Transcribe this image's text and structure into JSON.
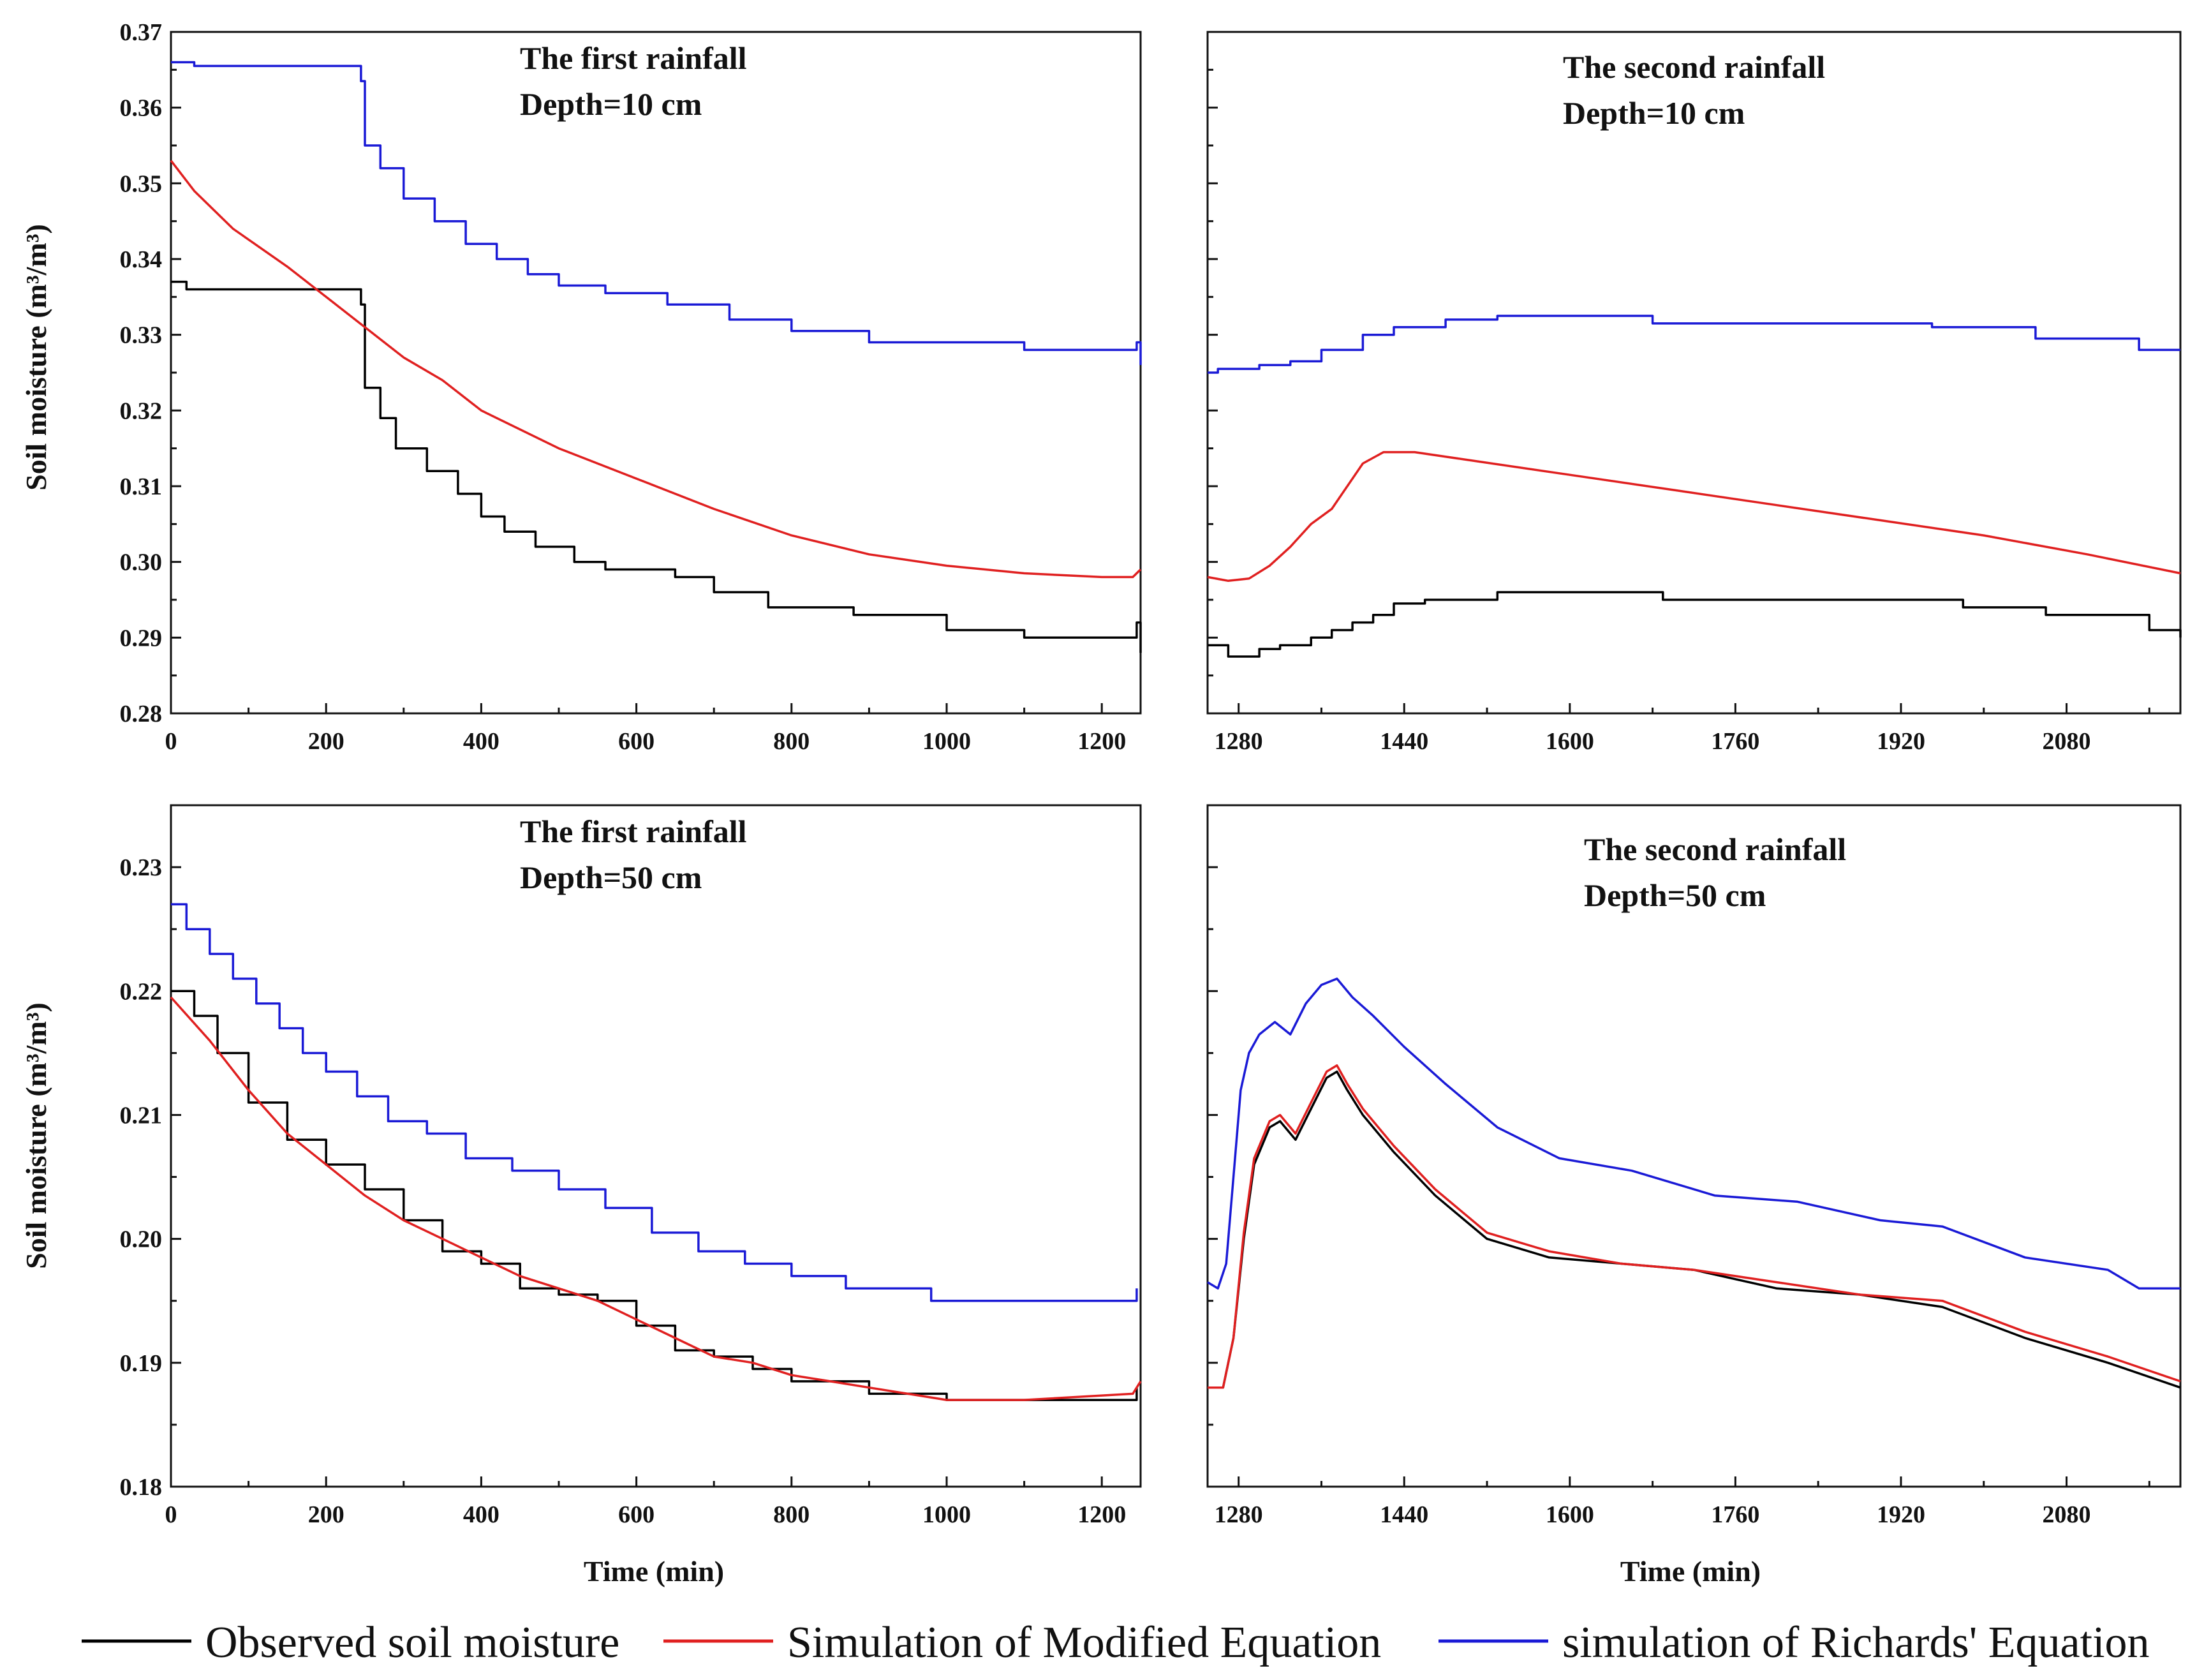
{
  "colors": {
    "observed": "#000000",
    "modified": "#e02020",
    "richards": "#1a1ad6",
    "axis": "#111111"
  },
  "legend": {
    "observed": "Observed soil moisture",
    "modified": "Simulation of Modified Equation",
    "richards": "simulation of Richards' Equation"
  },
  "chart_data": [
    {
      "type": "line",
      "panel": "top-left",
      "title": "",
      "annotation": [
        "The first rainfall",
        "Depth=10 cm"
      ],
      "xlabel": "",
      "ylabel": "Soil moisture (m³/m³)",
      "xlim": [
        0,
        1250
      ],
      "ylim": [
        0.28,
        0.37
      ],
      "xticks": [
        0,
        200,
        400,
        600,
        800,
        1000,
        1200
      ],
      "xtick_labels": [
        "0",
        "200",
        "400",
        "600",
        "800",
        "1000",
        "1200"
      ],
      "yticks": [
        0.28,
        0.29,
        0.3,
        0.31,
        0.32,
        0.33,
        0.34,
        0.35,
        0.36,
        0.37
      ],
      "ytick_labels": [
        "0.28",
        "0.29",
        "0.30",
        "0.31",
        "0.32",
        "0.33",
        "0.34",
        "0.35",
        "0.36",
        "0.37"
      ],
      "series": [
        {
          "name": "Observed soil moisture",
          "color": "observed",
          "step": true,
          "x": [
            0,
            20,
            30,
            220,
            245,
            250,
            270,
            290,
            330,
            370,
            400,
            430,
            470,
            520,
            560,
            650,
            700,
            770,
            880,
            1000,
            1100,
            1240,
            1245,
            1250
          ],
          "y": [
            0.337,
            0.336,
            0.336,
            0.336,
            0.334,
            0.323,
            0.319,
            0.315,
            0.312,
            0.309,
            0.306,
            0.304,
            0.302,
            0.3,
            0.299,
            0.298,
            0.296,
            0.294,
            0.293,
            0.291,
            0.29,
            0.29,
            0.292,
            0.288
          ]
        },
        {
          "name": "Simulation of Modified Equation",
          "color": "modified",
          "step": false,
          "x": [
            0,
            30,
            80,
            150,
            200,
            250,
            300,
            350,
            400,
            500,
            600,
            700,
            800,
            900,
            1000,
            1100,
            1200,
            1240,
            1250
          ],
          "y": [
            0.353,
            0.349,
            0.344,
            0.339,
            0.335,
            0.331,
            0.327,
            0.324,
            0.32,
            0.315,
            0.311,
            0.307,
            0.3035,
            0.301,
            0.2995,
            0.2985,
            0.298,
            0.298,
            0.299
          ]
        },
        {
          "name": "simulation of Richards' Equation",
          "color": "richards",
          "step": true,
          "x": [
            0,
            30,
            220,
            245,
            250,
            270,
            300,
            340,
            380,
            420,
            460,
            500,
            560,
            640,
            720,
            800,
            900,
            1100,
            1240,
            1245,
            1250
          ],
          "y": [
            0.366,
            0.3655,
            0.3655,
            0.3635,
            0.355,
            0.352,
            0.348,
            0.345,
            0.342,
            0.34,
            0.338,
            0.3365,
            0.3355,
            0.334,
            0.332,
            0.3305,
            0.329,
            0.328,
            0.328,
            0.329,
            0.326
          ]
        }
      ]
    },
    {
      "type": "line",
      "panel": "top-right",
      "title": "",
      "annotation": [
        "The second rainfall",
        "Depth=10 cm"
      ],
      "xlabel": "",
      "ylabel": "",
      "xlim": [
        1250,
        2190
      ],
      "ylim": [
        0.28,
        0.37
      ],
      "xticks": [
        1280,
        1440,
        1600,
        1760,
        1920,
        2080
      ],
      "xtick_labels": [
        "1280",
        "1440",
        "1600",
        "1760",
        "1920",
        "2080"
      ],
      "yticks": [
        0.28,
        0.29,
        0.3,
        0.31,
        0.32,
        0.33,
        0.34,
        0.35,
        0.36,
        0.37
      ],
      "ytick_labels": [],
      "series": [
        {
          "name": "Observed soil moisture",
          "color": "observed",
          "step": true,
          "x": [
            1250,
            1270,
            1280,
            1300,
            1320,
            1350,
            1370,
            1390,
            1410,
            1430,
            1460,
            1500,
            1530,
            1690,
            1980,
            2060,
            2160,
            2190
          ],
          "y": [
            0.289,
            0.2875,
            0.2875,
            0.2885,
            0.289,
            0.29,
            0.291,
            0.292,
            0.293,
            0.2945,
            0.295,
            0.295,
            0.296,
            0.295,
            0.294,
            0.293,
            0.291,
            0.29
          ]
        },
        {
          "name": "Simulation of Modified Equation",
          "color": "modified",
          "step": false,
          "x": [
            1250,
            1270,
            1290,
            1310,
            1330,
            1350,
            1370,
            1380,
            1400,
            1420,
            1450,
            1500,
            1600,
            1700,
            1800,
            1900,
            2000,
            2100,
            2190
          ],
          "y": [
            0.298,
            0.2975,
            0.2978,
            0.2995,
            0.302,
            0.305,
            0.307,
            0.309,
            0.313,
            0.3145,
            0.3145,
            0.3135,
            0.3115,
            0.3095,
            0.3075,
            0.3055,
            0.3035,
            0.301,
            0.2985
          ]
        },
        {
          "name": "simulation of Richards' Equation",
          "color": "richards",
          "step": true,
          "x": [
            1250,
            1260,
            1280,
            1300,
            1330,
            1360,
            1400,
            1430,
            1480,
            1530,
            1680,
            1950,
            2050,
            2150,
            2190
          ],
          "y": [
            0.325,
            0.3255,
            0.3255,
            0.326,
            0.3265,
            0.328,
            0.33,
            0.331,
            0.332,
            0.3325,
            0.3315,
            0.331,
            0.3295,
            0.328,
            0.328
          ]
        }
      ]
    },
    {
      "type": "line",
      "panel": "bottom-left",
      "title": "",
      "annotation": [
        "The first rainfall",
        "Depth=50 cm"
      ],
      "xlabel": "Time (min)",
      "ylabel": "Soil moisture (m³/m³)",
      "xlim": [
        0,
        1250
      ],
      "ylim": [
        0.18,
        0.235
      ],
      "xticks": [
        0,
        200,
        400,
        600,
        800,
        1000,
        1200
      ],
      "xtick_labels": [
        "0",
        "200",
        "400",
        "600",
        "800",
        "1000",
        "1200"
      ],
      "yticks": [
        0.18,
        0.19,
        0.2,
        0.21,
        0.22,
        0.23
      ],
      "ytick_labels": [
        "0.18",
        "0.19",
        "0.20",
        "0.21",
        "0.22",
        "0.23"
      ],
      "series": [
        {
          "name": "Observed soil moisture",
          "color": "observed",
          "step": true,
          "x": [
            0,
            30,
            60,
            100,
            150,
            200,
            250,
            300,
            350,
            400,
            450,
            500,
            550,
            600,
            650,
            700,
            750,
            800,
            850,
            900,
            1000,
            1240,
            1245
          ],
          "y": [
            0.22,
            0.218,
            0.215,
            0.211,
            0.208,
            0.206,
            0.204,
            0.2015,
            0.199,
            0.198,
            0.196,
            0.1955,
            0.195,
            0.193,
            0.191,
            0.1905,
            0.1895,
            0.1885,
            0.1885,
            0.1875,
            0.187,
            0.187,
            0.188
          ]
        },
        {
          "name": "Simulation of Modified Equation",
          "color": "modified",
          "step": false,
          "x": [
            0,
            50,
            100,
            150,
            200,
            250,
            300,
            350,
            400,
            450,
            500,
            550,
            600,
            650,
            700,
            750,
            800,
            850,
            900,
            950,
            1000,
            1100,
            1240,
            1250
          ],
          "y": [
            0.2195,
            0.216,
            0.212,
            0.2085,
            0.206,
            0.2035,
            0.2015,
            0.2,
            0.1985,
            0.197,
            0.196,
            0.195,
            0.1935,
            0.192,
            0.1905,
            0.19,
            0.189,
            0.1885,
            0.188,
            0.1875,
            0.187,
            0.187,
            0.1875,
            0.1885
          ]
        },
        {
          "name": "simulation of Richards' Equation",
          "color": "richards",
          "step": true,
          "x": [
            0,
            20,
            50,
            80,
            110,
            140,
            170,
            200,
            240,
            280,
            330,
            380,
            440,
            500,
            560,
            620,
            680,
            740,
            800,
            870,
            980,
            1240,
            1245
          ],
          "y": [
            0.227,
            0.225,
            0.223,
            0.221,
            0.219,
            0.217,
            0.215,
            0.2135,
            0.2115,
            0.2095,
            0.2085,
            0.2065,
            0.2055,
            0.204,
            0.2025,
            0.2005,
            0.199,
            0.198,
            0.197,
            0.196,
            0.195,
            0.195,
            0.196
          ]
        }
      ]
    },
    {
      "type": "line",
      "panel": "bottom-right",
      "title": "",
      "annotation": [
        "The second rainfall",
        "Depth=50 cm"
      ],
      "xlabel": "Time (min)",
      "ylabel": "",
      "xlim": [
        1250,
        2190
      ],
      "ylim": [
        0.18,
        0.235
      ],
      "xticks": [
        1280,
        1440,
        1600,
        1760,
        1920,
        2080
      ],
      "xtick_labels": [
        "1280",
        "1440",
        "1600",
        "1760",
        "1920",
        "2080"
      ],
      "yticks": [
        0.18,
        0.19,
        0.2,
        0.21,
        0.22,
        0.23
      ],
      "ytick_labels": [],
      "series": [
        {
          "name": "Observed soil moisture",
          "color": "observed",
          "step": false,
          "x": [
            1250,
            1265,
            1275,
            1285,
            1295,
            1310,
            1320,
            1335,
            1350,
            1365,
            1375,
            1385,
            1400,
            1430,
            1470,
            1520,
            1580,
            1650,
            1720,
            1800,
            1880,
            1960,
            2040,
            2120,
            2190
          ],
          "y": [
            0.188,
            0.188,
            0.192,
            0.2,
            0.206,
            0.209,
            0.2095,
            0.208,
            0.2105,
            0.213,
            0.2135,
            0.212,
            0.21,
            0.207,
            0.2035,
            0.2,
            0.1985,
            0.198,
            0.1975,
            0.196,
            0.1955,
            0.1945,
            0.192,
            0.19,
            0.188
          ]
        },
        {
          "name": "Simulation of Modified Equation",
          "color": "modified",
          "step": false,
          "x": [
            1250,
            1265,
            1275,
            1285,
            1295,
            1310,
            1320,
            1335,
            1350,
            1365,
            1375,
            1385,
            1400,
            1430,
            1470,
            1520,
            1580,
            1650,
            1720,
            1800,
            1880,
            1960,
            2040,
            2120,
            2190
          ],
          "y": [
            0.188,
            0.188,
            0.192,
            0.2005,
            0.2065,
            0.2095,
            0.21,
            0.2085,
            0.211,
            0.2135,
            0.214,
            0.2125,
            0.2105,
            0.2075,
            0.204,
            0.2005,
            0.199,
            0.198,
            0.1975,
            0.1965,
            0.1955,
            0.195,
            0.1925,
            0.1905,
            0.1885
          ]
        },
        {
          "name": "simulation of Richards' Equation",
          "color": "richards",
          "step": false,
          "x": [
            1250,
            1260,
            1268,
            1275,
            1282,
            1290,
            1300,
            1315,
            1330,
            1345,
            1360,
            1375,
            1390,
            1410,
            1440,
            1480,
            1530,
            1590,
            1660,
            1740,
            1820,
            1900,
            1960,
            2040,
            2120,
            2150,
            2190
          ],
          "y": [
            0.1965,
            0.196,
            0.198,
            0.205,
            0.212,
            0.215,
            0.2165,
            0.2175,
            0.2165,
            0.219,
            0.2205,
            0.221,
            0.2195,
            0.218,
            0.2155,
            0.2125,
            0.209,
            0.2065,
            0.2055,
            0.2035,
            0.203,
            0.2015,
            0.201,
            0.1985,
            0.1975,
            0.196,
            0.196
          ]
        }
      ]
    }
  ]
}
